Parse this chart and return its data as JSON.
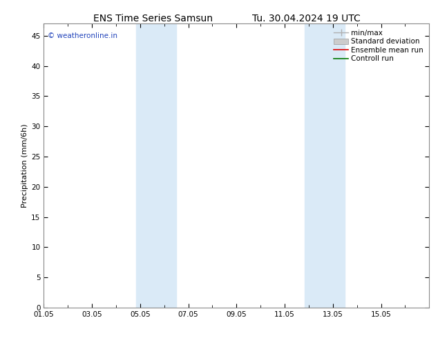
{
  "title_left": "ENS Time Series Samsun",
  "title_right": "Tu. 30.04.2024 19 UTC",
  "ylabel": "Precipitation (mm/6h)",
  "xlim_start": 0.0,
  "xlim_end": 16.0,
  "ylim": [
    0,
    47
  ],
  "yticks": [
    0,
    5,
    10,
    15,
    20,
    25,
    30,
    35,
    40,
    45
  ],
  "xtick_labels": [
    "01.05",
    "03.05",
    "05.05",
    "07.05",
    "09.05",
    "11.05",
    "13.05",
    "15.05"
  ],
  "xtick_positions": [
    0,
    2,
    4,
    6,
    8,
    10,
    12,
    14
  ],
  "shaded_bands": [
    {
      "x_start": 3.83,
      "x_end": 5.5
    },
    {
      "x_start": 10.83,
      "x_end": 12.5
    }
  ],
  "shaded_color": "#daeaf7",
  "watermark_text": "© weatheronline.in",
  "watermark_color": "#2244bb",
  "legend_entries": [
    {
      "label": "min/max",
      "color": "#b0b0b0",
      "type": "minmax"
    },
    {
      "label": "Standard deviation",
      "color": "#cccccc",
      "type": "patch"
    },
    {
      "label": "Ensemble mean run",
      "color": "#dd0000",
      "type": "line"
    },
    {
      "label": "Controll run",
      "color": "#007700",
      "type": "line"
    }
  ],
  "bg_color": "#ffffff",
  "border_color": "#888888",
  "title_fontsize": 10,
  "axis_label_fontsize": 8,
  "tick_fontsize": 7.5,
  "legend_fontsize": 7.5,
  "watermark_fontsize": 7.5
}
